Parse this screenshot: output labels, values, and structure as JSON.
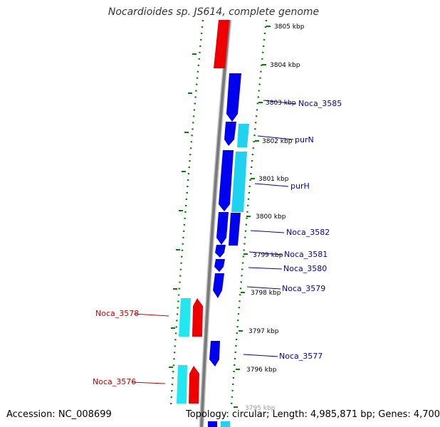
{
  "title": "Nocardioides sp. JS614, complete genome",
  "footer": {
    "accession": "Accession: NC_008699",
    "topology": "Topology: circular; Length: 4,985,871 bp; Genes: 4,700"
  },
  "colors": {
    "forward_cds": "#0000ee",
    "forward_cds_alt": "#1fd3f0",
    "reverse_cds": "#ee0000",
    "reverse_cds_alt": "#22e6f0",
    "backbone": "#888888",
    "ticks": "#008000",
    "forward_label": "#0000bb",
    "reverse_label": "#cc0000"
  },
  "ticks": [
    "3805 kbp",
    "3804 kbp",
    "3803 kbp",
    "3802 kbp",
    "3801 kbp",
    "3800 kbp",
    "3799 kbp",
    "3798 kbp",
    "3797 kbp",
    "3796 kbp",
    "3795 kbp"
  ],
  "genes": [
    {
      "label": "Noca_3585",
      "strand": "forward"
    },
    {
      "label": "purN",
      "strand": "forward"
    },
    {
      "label": "purH",
      "strand": "forward"
    },
    {
      "label": "Noca_3582",
      "strand": "forward"
    },
    {
      "label": "Noca_3581",
      "strand": "forward"
    },
    {
      "label": "Noca_3580",
      "strand": "forward"
    },
    {
      "label": "Noca_3579",
      "strand": "forward"
    },
    {
      "label": "Noca_3578",
      "strand": "reverse"
    },
    {
      "label": "Noca_3577",
      "strand": "forward"
    },
    {
      "label": "Noca_3576",
      "strand": "reverse"
    }
  ]
}
